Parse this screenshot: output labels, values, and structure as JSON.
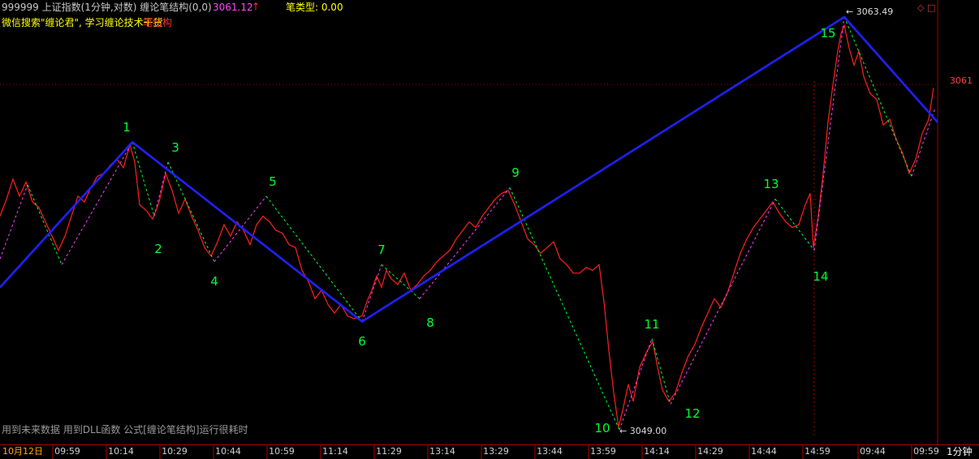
{
  "header": {
    "instrument": "999999 上证指数(1分钟,对数) 缠论笔结构(0,0)",
    "price": "3061.12",
    "price_arrow": "↑",
    "bi_type": "笔类型: 0.00",
    "subtitle_prefix": "微信搜索\"缠论君\", 学习缠论技术干货",
    "subtitle_suffix": "笔结构"
  },
  "window_icons": "◇ □",
  "footnote": "用到未来数据 用到DLL函数 公式[缠论笔结构]运行很耗时",
  "price_axis_label": "3061",
  "period_label": "1分钟",
  "colors": {
    "background": "#000000",
    "price_line": "#ff2020",
    "bi_line": "#2020ff",
    "pivot_label": "#00ff33",
    "down_segment": "#00ff33",
    "up_segment": "#ff40ff",
    "axis": "#b00000"
  },
  "chart_data": {
    "type": "line",
    "x_ticks": [
      "10月12日",
      "09:59",
      "10:14",
      "10:29",
      "10:44",
      "10:59",
      "11:14",
      "11:29",
      "13:14",
      "13:29",
      "13:44",
      "13:59",
      "14:14",
      "14:29",
      "14:44",
      "14:59",
      "09:44",
      "09:59"
    ],
    "y_range": [
      3049.0,
      3063.49
    ],
    "y_axis_labels": [
      "3061"
    ],
    "high_annotation": "3063.49",
    "low_annotation": "3049.00",
    "pivot_labels": [
      "1",
      "2",
      "3",
      "4",
      "5",
      "6",
      "7",
      "8",
      "9",
      "10",
      "11",
      "12",
      "13",
      "14",
      "15"
    ],
    "pivots": [
      {
        "label": "1",
        "bar": 163,
        "value": 3059.1,
        "kind": "high"
      },
      {
        "label": "2",
        "bar": 190,
        "value": 3056.5,
        "kind": "low"
      },
      {
        "label": "3",
        "bar": 207,
        "value": 3058.4,
        "kind": "high"
      },
      {
        "label": "4",
        "bar": 264,
        "value": 3054.9,
        "kind": "low"
      },
      {
        "label": "5",
        "bar": 328,
        "value": 3057.2,
        "kind": "high"
      },
      {
        "label": "6",
        "bar": 446,
        "value": 3052.8,
        "kind": "low"
      },
      {
        "label": "7",
        "bar": 470,
        "value": 3054.8,
        "kind": "high"
      },
      {
        "label": "8",
        "bar": 517,
        "value": 3053.6,
        "kind": "low"
      },
      {
        "label": "9",
        "bar": 628,
        "value": 3057.5,
        "kind": "high"
      },
      {
        "label": "10",
        "bar": 763,
        "value": 3049.0,
        "kind": "low"
      },
      {
        "label": "11",
        "bar": 803,
        "value": 3052.2,
        "kind": "high"
      },
      {
        "label": "12",
        "bar": 826,
        "value": 3049.9,
        "kind": "low"
      },
      {
        "label": "13",
        "bar": 955,
        "value": 3057.1,
        "kind": "high"
      },
      {
        "label": "14",
        "bar": 1003,
        "value": 3055.3,
        "kind": "low"
      },
      {
        "label": "15",
        "bar": 1040,
        "value": 3063.49,
        "kind": "high"
      }
    ],
    "bi_vertices": [
      {
        "bar": 0,
        "value": 3054.0
      },
      {
        "bar": 163,
        "value": 3059.1
      },
      {
        "bar": 446,
        "value": 3052.8
      },
      {
        "bar": 1040,
        "value": 3063.49
      },
      {
        "bar": 1155,
        "value": 3059.8
      }
    ],
    "price_series": [
      [
        0,
        3056.5
      ],
      [
        8,
        3057.1
      ],
      [
        16,
        3057.8
      ],
      [
        24,
        3057.2
      ],
      [
        32,
        3057.7
      ],
      [
        40,
        3057.0
      ],
      [
        48,
        3056.8
      ],
      [
        56,
        3056.3
      ],
      [
        64,
        3055.8
      ],
      [
        72,
        3055.3
      ],
      [
        80,
        3055.8
      ],
      [
        88,
        3056.5
      ],
      [
        96,
        3057.2
      ],
      [
        104,
        3057.0
      ],
      [
        112,
        3057.5
      ],
      [
        120,
        3057.9
      ],
      [
        128,
        3058.0
      ],
      [
        136,
        3058.3
      ],
      [
        144,
        3058.5
      ],
      [
        152,
        3058.2
      ],
      [
        160,
        3059.0
      ],
      [
        166,
        3058.4
      ],
      [
        172,
        3056.9
      ],
      [
        180,
        3056.7
      ],
      [
        188,
        3056.4
      ],
      [
        196,
        3057.0
      ],
      [
        204,
        3058.0
      ],
      [
        212,
        3057.4
      ],
      [
        220,
        3056.6
      ],
      [
        228,
        3057.1
      ],
      [
        236,
        3056.5
      ],
      [
        244,
        3056.0
      ],
      [
        252,
        3055.4
      ],
      [
        260,
        3055.1
      ],
      [
        268,
        3055.6
      ],
      [
        276,
        3056.2
      ],
      [
        284,
        3055.8
      ],
      [
        292,
        3056.3
      ],
      [
        300,
        3056.0
      ],
      [
        308,
        3055.5
      ],
      [
        316,
        3056.2
      ],
      [
        324,
        3056.5
      ],
      [
        332,
        3056.3
      ],
      [
        340,
        3056.0
      ],
      [
        348,
        3055.9
      ],
      [
        356,
        3055.5
      ],
      [
        364,
        3055.4
      ],
      [
        372,
        3054.6
      ],
      [
        380,
        3054.2
      ],
      [
        388,
        3053.6
      ],
      [
        396,
        3053.9
      ],
      [
        404,
        3053.4
      ],
      [
        412,
        3053.1
      ],
      [
        420,
        3053.4
      ],
      [
        428,
        3053.0
      ],
      [
        436,
        3052.9
      ],
      [
        446,
        3053.0
      ],
      [
        452,
        3053.5
      ],
      [
        458,
        3053.9
      ],
      [
        464,
        3054.4
      ],
      [
        470,
        3054.0
      ],
      [
        476,
        3054.6
      ],
      [
        482,
        3054.3
      ],
      [
        490,
        3054.1
      ],
      [
        498,
        3054.5
      ],
      [
        506,
        3053.9
      ],
      [
        514,
        3054.1
      ],
      [
        522,
        3054.4
      ],
      [
        530,
        3054.6
      ],
      [
        538,
        3054.9
      ],
      [
        546,
        3055.1
      ],
      [
        554,
        3055.3
      ],
      [
        562,
        3055.7
      ],
      [
        570,
        3056.0
      ],
      [
        578,
        3056.3
      ],
      [
        586,
        3056.1
      ],
      [
        594,
        3056.5
      ],
      [
        602,
        3056.8
      ],
      [
        610,
        3057.1
      ],
      [
        618,
        3057.3
      ],
      [
        626,
        3057.4
      ],
      [
        634,
        3056.9
      ],
      [
        642,
        3056.3
      ],
      [
        650,
        3055.7
      ],
      [
        658,
        3055.5
      ],
      [
        666,
        3055.2
      ],
      [
        674,
        3055.4
      ],
      [
        682,
        3055.6
      ],
      [
        690,
        3055.0
      ],
      [
        698,
        3054.8
      ],
      [
        706,
        3054.5
      ],
      [
        714,
        3054.5
      ],
      [
        722,
        3054.7
      ],
      [
        730,
        3054.6
      ],
      [
        738,
        3054.8
      ],
      [
        744,
        3053.5
      ],
      [
        750,
        3051.8
      ],
      [
        756,
        3050.3
      ],
      [
        762,
        3049.1
      ],
      [
        768,
        3049.8
      ],
      [
        774,
        3050.6
      ],
      [
        780,
        3050.0
      ],
      [
        788,
        3051.2
      ],
      [
        796,
        3051.7
      ],
      [
        804,
        3052.1
      ],
      [
        810,
        3051.2
      ],
      [
        816,
        3050.4
      ],
      [
        824,
        3050.0
      ],
      [
        832,
        3050.3
      ],
      [
        840,
        3051.0
      ],
      [
        848,
        3051.6
      ],
      [
        856,
        3052.0
      ],
      [
        864,
        3052.6
      ],
      [
        872,
        3053.1
      ],
      [
        880,
        3053.6
      ],
      [
        888,
        3053.3
      ],
      [
        896,
        3053.8
      ],
      [
        904,
        3054.5
      ],
      [
        912,
        3055.2
      ],
      [
        920,
        3055.7
      ],
      [
        928,
        3056.1
      ],
      [
        936,
        3056.4
      ],
      [
        944,
        3056.7
      ],
      [
        952,
        3057.0
      ],
      [
        960,
        3056.6
      ],
      [
        968,
        3056.3
      ],
      [
        976,
        3056.1
      ],
      [
        984,
        3056.2
      ],
      [
        992,
        3056.9
      ],
      [
        998,
        3057.3
      ],
      [
        1002,
        3055.4
      ],
      [
        1008,
        3056.5
      ],
      [
        1014,
        3058.0
      ],
      [
        1020,
        3059.8
      ],
      [
        1026,
        3061.1
      ],
      [
        1032,
        3062.3
      ],
      [
        1036,
        3062.9
      ],
      [
        1040,
        3063.2
      ],
      [
        1046,
        3062.4
      ],
      [
        1052,
        3061.8
      ],
      [
        1058,
        3062.3
      ],
      [
        1064,
        3061.4
      ],
      [
        1072,
        3060.8
      ],
      [
        1080,
        3060.6
      ],
      [
        1088,
        3059.7
      ],
      [
        1096,
        3059.9
      ],
      [
        1104,
        3059.2
      ],
      [
        1112,
        3058.7
      ],
      [
        1120,
        3058.0
      ],
      [
        1128,
        3058.5
      ],
      [
        1136,
        3059.4
      ],
      [
        1144,
        3059.9
      ],
      [
        1150,
        3061.0
      ]
    ]
  }
}
